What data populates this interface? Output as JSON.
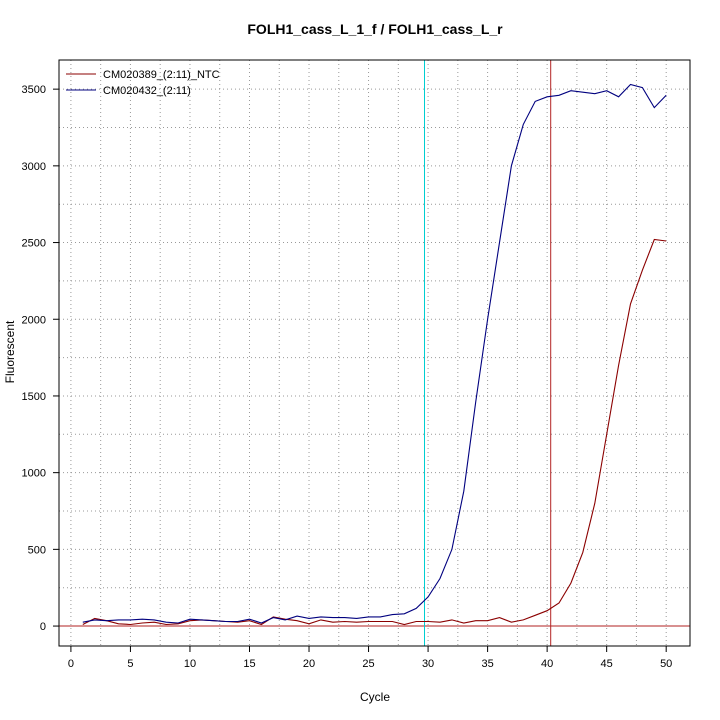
{
  "colors": {
    "series_ntc": "#8b0000",
    "series_sample": "#00007f",
    "threshold_line": "#b22222",
    "cq_ntc_line": "#b22222",
    "cq_sample_line": "#00ced1",
    "grid": "#999999"
  },
  "chart_data": {
    "type": "line",
    "title": "FOLH1_cass_L_1_f / FOLH1_cass_L_r",
    "xlabel": "Cycle",
    "ylabel": "Fluorescent",
    "xlim": [
      -1,
      52
    ],
    "ylim": [
      -130,
      3690
    ],
    "xticks": [
      0,
      5,
      10,
      15,
      20,
      25,
      30,
      35,
      40,
      45,
      50
    ],
    "yticks": [
      0,
      500,
      1000,
      1500,
      2000,
      2500,
      3000,
      3500
    ],
    "grid": true,
    "legend_position": "top-left",
    "threshold": 0,
    "cq_lines": [
      29.7,
      40.3
    ],
    "x": [
      1,
      2,
      3,
      4,
      5,
      6,
      7,
      8,
      9,
      10,
      11,
      12,
      13,
      14,
      15,
      16,
      17,
      18,
      19,
      20,
      21,
      22,
      23,
      24,
      25,
      26,
      27,
      28,
      29,
      30,
      31,
      32,
      33,
      34,
      35,
      36,
      37,
      38,
      39,
      40,
      41,
      42,
      43,
      44,
      45,
      46,
      47,
      48,
      49,
      50
    ],
    "series": [
      {
        "name": "CM020389_(2:11)_NTC",
        "values": [
          10,
          50,
          35,
          15,
          10,
          20,
          25,
          10,
          15,
          35,
          40,
          35,
          30,
          25,
          35,
          10,
          60,
          45,
          35,
          15,
          40,
          25,
          30,
          25,
          30,
          30,
          30,
          10,
          30,
          30,
          25,
          40,
          20,
          35,
          35,
          55,
          25,
          40,
          70,
          100,
          150,
          280,
          480,
          800,
          1250,
          1700,
          2100,
          2320,
          2520,
          2510
        ]
      },
      {
        "name": "CM020432_(2:11)",
        "values": [
          25,
          40,
          35,
          40,
          40,
          45,
          40,
          25,
          20,
          45,
          40,
          35,
          30,
          30,
          45,
          20,
          55,
          40,
          65,
          50,
          60,
          55,
          55,
          50,
          60,
          60,
          75,
          80,
          115,
          190,
          310,
          500,
          880,
          1460,
          2000,
          2500,
          3000,
          3270,
          3420,
          3450,
          3460,
          3490,
          3480,
          3470,
          3490,
          3450,
          3530,
          3510,
          3380,
          3460
        ]
      }
    ]
  }
}
